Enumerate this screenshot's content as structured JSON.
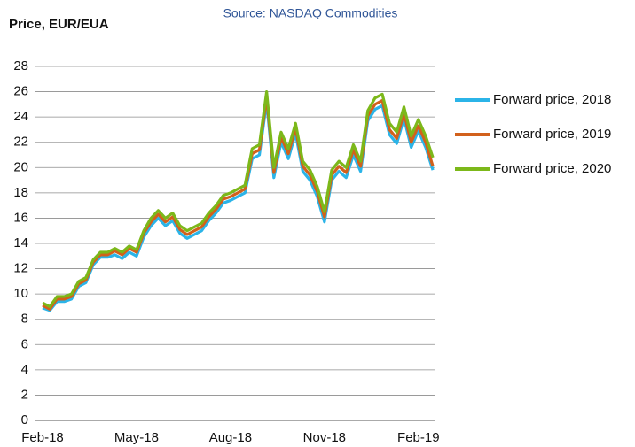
{
  "chart_data": {
    "type": "line",
    "title": "Price, EUR/EUA",
    "subtitle": "Source: NASDAQ Commodities",
    "categories": [
      "Feb-18",
      null,
      null,
      null,
      null,
      null,
      null,
      null,
      null,
      null,
      null,
      null,
      null,
      "May-18",
      null,
      null,
      null,
      null,
      null,
      null,
      null,
      null,
      null,
      null,
      null,
      null,
      "Aug-18",
      null,
      null,
      null,
      null,
      null,
      null,
      null,
      null,
      null,
      null,
      null,
      null,
      "Nov-18",
      null,
      null,
      null,
      null,
      null,
      null,
      null,
      null,
      null,
      null,
      null,
      null,
      "Feb-19",
      null,
      null
    ],
    "series": [
      {
        "name": "Forward price, 2018",
        "color": "#2bb4e8",
        "values": [
          8.9,
          8.7,
          9.4,
          9.4,
          9.6,
          10.6,
          10.9,
          12.3,
          12.9,
          12.9,
          13.1,
          12.8,
          13.3,
          13.0,
          14.5,
          15.4,
          16.0,
          15.4,
          15.8,
          14.8,
          14.4,
          14.7,
          15.0,
          15.8,
          16.4,
          17.2,
          17.4,
          17.7,
          18.0,
          20.7,
          21.0,
          25.2,
          19.2,
          22.0,
          20.7,
          22.7,
          19.7,
          19.0,
          17.7,
          15.7,
          19.0,
          19.7,
          19.2,
          21.0,
          19.7,
          23.7,
          24.6,
          24.9,
          22.6,
          21.9,
          23.9,
          21.6,
          22.9,
          21.6,
          19.8
        ]
      },
      {
        "name": "Forward price, 2019",
        "color": "#d2611c",
        "values": [
          9.1,
          8.8,
          9.6,
          9.6,
          9.8,
          10.8,
          11.1,
          12.5,
          13.1,
          13.1,
          13.4,
          13.1,
          13.6,
          13.3,
          14.8,
          15.7,
          16.3,
          15.7,
          16.1,
          15.1,
          14.7,
          15.0,
          15.3,
          16.1,
          16.7,
          17.5,
          17.7,
          18.0,
          18.3,
          21.1,
          21.4,
          25.6,
          19.6,
          22.4,
          21.1,
          23.1,
          20.1,
          19.4,
          18.1,
          16.1,
          19.4,
          20.1,
          19.6,
          21.4,
          20.1,
          24.1,
          25.0,
          25.3,
          23.0,
          22.3,
          24.3,
          22.0,
          23.3,
          22.0,
          20.1
        ]
      },
      {
        "name": "Forward price, 2020",
        "color": "#7cb81a",
        "values": [
          9.3,
          9.0,
          9.8,
          9.8,
          10.0,
          11.0,
          11.3,
          12.7,
          13.3,
          13.3,
          13.6,
          13.3,
          13.8,
          13.5,
          15.0,
          16.0,
          16.6,
          16.0,
          16.4,
          15.4,
          15.0,
          15.3,
          15.6,
          16.4,
          17.0,
          17.8,
          18.0,
          18.3,
          18.6,
          21.5,
          21.8,
          26.0,
          20.0,
          22.8,
          21.5,
          23.5,
          20.5,
          19.8,
          18.5,
          16.5,
          19.8,
          20.5,
          20.0,
          21.8,
          20.5,
          24.5,
          25.5,
          25.8,
          23.5,
          22.8,
          24.8,
          22.5,
          23.8,
          22.5,
          20.8
        ]
      }
    ],
    "ylim": [
      0,
      28
    ],
    "yticks": [
      0,
      2,
      4,
      6,
      8,
      10,
      12,
      14,
      16,
      18,
      20,
      22,
      24,
      26,
      28
    ],
    "grid": true,
    "legend": "right"
  }
}
